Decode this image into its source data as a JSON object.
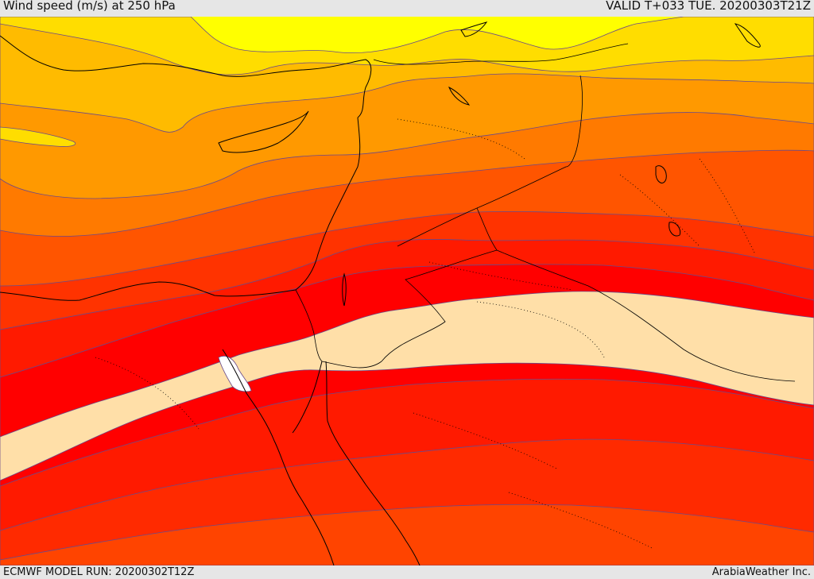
{
  "header": {
    "title": "Wind speed (m/s) at 250 hPa",
    "valid": "VALID T+033 TUE. 20200303T21Z"
  },
  "footer": {
    "model_run": "ECMWF MODEL RUN: 20200302T12Z",
    "credit": "ArabiaWeather Inc."
  },
  "palette": {
    "band_1": "#ffff00",
    "band_2": "#ffdd00",
    "band_3": "#ffbb00",
    "band_4": "#ff9900",
    "band_5": "#ff7a00",
    "band_6": "#ff5500",
    "band_7": "#ff3300",
    "band_8": "#ff1a00",
    "band_9": "#ff0000",
    "jet_core": "#ffdfa8",
    "max_core": "#ffffff",
    "contour": "#5a3a9a",
    "coastline": "#000000"
  }
}
